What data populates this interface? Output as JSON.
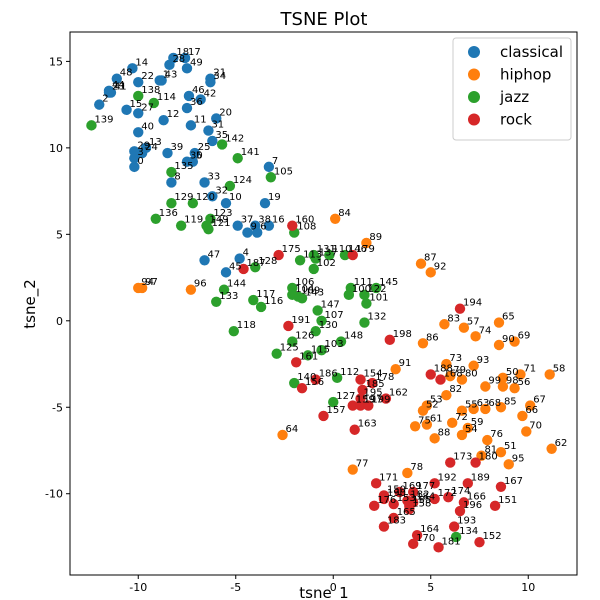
{
  "chart_data": {
    "type": "scatter",
    "title": "TSNE Plot",
    "xlabel": "tsne_1",
    "ylabel": "tsne_2",
    "xlim": [
      -13.5,
      12.5
    ],
    "ylim": [
      -14.7,
      16.7
    ],
    "xticks": [
      -10,
      -5,
      0,
      5,
      10
    ],
    "yticks": [
      -10,
      -5,
      0,
      5,
      10,
      15
    ],
    "legend_position": "top-right",
    "grid": false,
    "series": [
      {
        "name": "classical",
        "color": "#1f77b4",
        "points": [
          {
            "id": "0",
            "x": -10.2,
            "y": 8.9
          },
          {
            "id": "1",
            "x": -8.9,
            "y": 13.9
          },
          {
            "id": "2",
            "x": -12.0,
            "y": 12.5
          },
          {
            "id": "3",
            "x": -10.2,
            "y": 9.4
          },
          {
            "id": "4",
            "x": -4.8,
            "y": 3.6
          },
          {
            "id": "5",
            "x": -7.2,
            "y": 9.2
          },
          {
            "id": "6",
            "x": -3.9,
            "y": 5.1
          },
          {
            "id": "7",
            "x": -3.3,
            "y": 8.9
          },
          {
            "id": "8",
            "x": -8.3,
            "y": 8.0
          },
          {
            "id": "9",
            "x": -4.4,
            "y": 5.1
          },
          {
            "id": "10",
            "x": -5.5,
            "y": 6.8
          },
          {
            "id": "11",
            "x": -7.3,
            "y": 11.3
          },
          {
            "id": "12",
            "x": -8.7,
            "y": 11.6
          },
          {
            "id": "13",
            "x": -9.6,
            "y": 10.0
          },
          {
            "id": "14",
            "x": -10.3,
            "y": 14.6
          },
          {
            "id": "15",
            "x": -10.6,
            "y": 12.2
          },
          {
            "id": "16",
            "x": -3.3,
            "y": 5.5
          },
          {
            "id": "17",
            "x": -7.6,
            "y": 15.2
          },
          {
            "id": "18",
            "x": -8.2,
            "y": 15.2
          },
          {
            "id": "19",
            "x": -3.5,
            "y": 6.8
          },
          {
            "id": "20",
            "x": -6.0,
            "y": 11.7
          },
          {
            "id": "21",
            "x": -6.3,
            "y": 14.0
          },
          {
            "id": "22",
            "x": -10.0,
            "y": 13.8
          },
          {
            "id": "23",
            "x": -11.5,
            "y": 13.2
          },
          {
            "id": "24",
            "x": -9.8,
            "y": 9.7
          },
          {
            "id": "25",
            "x": -7.1,
            "y": 9.7
          },
          {
            "id": "27",
            "x": -10.0,
            "y": 12.0
          },
          {
            "id": "28",
            "x": -8.4,
            "y": 14.8
          },
          {
            "id": "29",
            "x": -10.2,
            "y": 9.8
          },
          {
            "id": "30",
            "x": -7.5,
            "y": 9.2
          },
          {
            "id": "31",
            "x": -6.4,
            "y": 11.0
          },
          {
            "id": "32",
            "x": -6.2,
            "y": 7.2
          },
          {
            "id": "33",
            "x": -6.6,
            "y": 8.0
          },
          {
            "id": "34",
            "x": -6.3,
            "y": 13.8
          },
          {
            "id": "35",
            "x": -6.2,
            "y": 10.4
          },
          {
            "id": "36",
            "x": -7.5,
            "y": 12.3
          },
          {
            "id": "37",
            "x": -4.9,
            "y": 5.5
          },
          {
            "id": "38",
            "x": -4.0,
            "y": 5.5
          },
          {
            "id": "39",
            "x": -8.5,
            "y": 9.7
          },
          {
            "id": "40",
            "x": -10.0,
            "y": 10.9
          },
          {
            "id": "41",
            "x": -11.4,
            "y": 13.2
          },
          {
            "id": "42",
            "x": -6.8,
            "y": 12.8
          },
          {
            "id": "43",
            "x": -8.8,
            "y": 13.9
          },
          {
            "id": "44",
            "x": -11.5,
            "y": 13.3
          },
          {
            "id": "45",
            "x": -5.5,
            "y": 2.8
          },
          {
            "id": "46",
            "x": -7.4,
            "y": 13.0
          },
          {
            "id": "47",
            "x": -6.6,
            "y": 3.5
          },
          {
            "id": "48",
            "x": -11.1,
            "y": 14.0
          },
          {
            "id": "49",
            "x": -7.5,
            "y": 14.6
          }
        ]
      },
      {
        "name": "hiphop",
        "color": "#ff7f0e",
        "points": [
          {
            "id": "50",
            "x": 8.7,
            "y": -3.3
          },
          {
            "id": "51",
            "x": 8.6,
            "y": -7.6
          },
          {
            "id": "52",
            "x": 4.6,
            "y": -5.2
          },
          {
            "id": "53",
            "x": 4.8,
            "y": -4.9
          },
          {
            "id": "54",
            "x": 6.6,
            "y": -6.6
          },
          {
            "id": "55",
            "x": 6.6,
            "y": -5.2
          },
          {
            "id": "56",
            "x": 9.3,
            "y": -3.9
          },
          {
            "id": "57",
            "x": 6.7,
            "y": -0.4
          },
          {
            "id": "58",
            "x": 11.1,
            "y": -3.1
          },
          {
            "id": "59",
            "x": 6.9,
            "y": -6.2
          },
          {
            "id": "61",
            "x": 4.8,
            "y": -6.0
          },
          {
            "id": "62",
            "x": 11.2,
            "y": -7.4
          },
          {
            "id": "63",
            "x": 7.2,
            "y": -5.1
          },
          {
            "id": "64",
            "x": -2.6,
            "y": -6.6
          },
          {
            "id": "65",
            "x": 8.5,
            "y": -0.1
          },
          {
            "id": "66",
            "x": 9.7,
            "y": -5.5
          },
          {
            "id": "67",
            "x": 10.1,
            "y": -4.9
          },
          {
            "id": "68",
            "x": 7.8,
            "y": -5.1
          },
          {
            "id": "69",
            "x": 9.3,
            "y": -1.2
          },
          {
            "id": "70",
            "x": 9.9,
            "y": -6.4
          },
          {
            "id": "71",
            "x": 9.6,
            "y": -3.1
          },
          {
            "id": "72",
            "x": 6.1,
            "y": -5.9
          },
          {
            "id": "73",
            "x": 5.8,
            "y": -2.5
          },
          {
            "id": "74",
            "x": 7.3,
            "y": -0.9
          },
          {
            "id": "75",
            "x": 4.2,
            "y": -6.1
          },
          {
            "id": "76",
            "x": 7.9,
            "y": -6.9
          },
          {
            "id": "77",
            "x": 1.0,
            "y": -8.6
          },
          {
            "id": "78",
            "x": 3.8,
            "y": -8.8
          },
          {
            "id": "79",
            "x": 6.0,
            "y": -3.2
          },
          {
            "id": "80",
            "x": 6.6,
            "y": -3.4
          },
          {
            "id": "81",
            "x": 7.6,
            "y": -7.8
          },
          {
            "id": "82",
            "x": 5.8,
            "y": -4.3
          },
          {
            "id": "83",
            "x": 5.7,
            "y": -0.2
          },
          {
            "id": "84",
            "x": 0.1,
            "y": 5.9
          },
          {
            "id": "85",
            "x": 8.6,
            "y": -5.0
          },
          {
            "id": "86",
            "x": 4.6,
            "y": -1.3
          },
          {
            "id": "87",
            "x": 4.5,
            "y": 3.3
          },
          {
            "id": "88",
            "x": 5.2,
            "y": -6.8
          },
          {
            "id": "89",
            "x": 1.7,
            "y": 4.5
          },
          {
            "id": "90",
            "x": 8.5,
            "y": -1.4
          },
          {
            "id": "91",
            "x": 3.2,
            "y": -2.8
          },
          {
            "id": "92",
            "x": 5.0,
            "y": 2.8
          },
          {
            "id": "93",
            "x": 7.2,
            "y": -2.6
          },
          {
            "id": "94",
            "x": -10.0,
            "y": 1.9
          },
          {
            "id": "95",
            "x": 9.0,
            "y": -8.3
          },
          {
            "id": "96",
            "x": -7.3,
            "y": 1.8
          },
          {
            "id": "97",
            "x": -9.8,
            "y": 1.9
          },
          {
            "id": "98",
            "x": 8.7,
            "y": -3.8
          },
          {
            "id": "99",
            "x": 7.8,
            "y": -3.8
          }
        ]
      },
      {
        "name": "jazz",
        "color": "#2ca02c",
        "points": [
          {
            "id": "100",
            "x": 0.8,
            "y": 1.5
          },
          {
            "id": "101",
            "x": 1.7,
            "y": 1.0
          },
          {
            "id": "102",
            "x": -1.0,
            "y": 3.0
          },
          {
            "id": "103",
            "x": -0.6,
            "y": -1.7
          },
          {
            "id": "104",
            "x": -2.1,
            "y": 1.5
          },
          {
            "id": "105",
            "x": -3.2,
            "y": 8.3
          },
          {
            "id": "106",
            "x": -2.1,
            "y": 1.9
          },
          {
            "id": "107",
            "x": -0.6,
            "y": 0.0
          },
          {
            "id": "108",
            "x": -2.0,
            "y": 5.1
          },
          {
            "id": "109",
            "x": -1.8,
            "y": 1.4
          },
          {
            "id": "110",
            "x": -0.2,
            "y": 3.8
          },
          {
            "id": "111",
            "x": 0.9,
            "y": 1.9
          },
          {
            "id": "112",
            "x": 0.2,
            "y": -3.3
          },
          {
            "id": "113",
            "x": -1.7,
            "y": 3.5
          },
          {
            "id": "114",
            "x": -9.2,
            "y": 12.6
          },
          {
            "id": "115",
            "x": -1.3,
            "y": -2.0
          },
          {
            "id": "116",
            "x": -3.7,
            "y": 0.8
          },
          {
            "id": "117",
            "x": -4.1,
            "y": 1.2
          },
          {
            "id": "118",
            "x": -5.1,
            "y": -0.6
          },
          {
            "id": "119",
            "x": -7.8,
            "y": 5.5
          },
          {
            "id": "120",
            "x": -7.2,
            "y": 6.8
          },
          {
            "id": "121",
            "x": -6.4,
            "y": 5.3
          },
          {
            "id": "122",
            "x": 1.6,
            "y": 1.5
          },
          {
            "id": "123",
            "x": -6.3,
            "y": 5.9
          },
          {
            "id": "124",
            "x": -5.3,
            "y": 7.8
          },
          {
            "id": "125",
            "x": -2.9,
            "y": -1.9
          },
          {
            "id": "126",
            "x": -2.1,
            "y": -1.2
          },
          {
            "id": "127",
            "x": 0.0,
            "y": -4.7
          },
          {
            "id": "128",
            "x": -4.0,
            "y": 3.1
          },
          {
            "id": "129",
            "x": -8.3,
            "y": 6.8
          },
          {
            "id": "130",
            "x": -0.9,
            "y": -0.6
          },
          {
            "id": "131",
            "x": -1.0,
            "y": 3.8
          },
          {
            "id": "132",
            "x": 1.6,
            "y": -0.1
          },
          {
            "id": "133",
            "x": -6.0,
            "y": 1.1
          },
          {
            "id": "134",
            "x": 6.3,
            "y": -12.5
          },
          {
            "id": "135",
            "x": -8.3,
            "y": 8.6
          },
          {
            "id": "136",
            "x": -9.1,
            "y": 5.9
          },
          {
            "id": "137",
            "x": -0.9,
            "y": 3.6
          },
          {
            "id": "138",
            "x": -10.0,
            "y": 13.0
          },
          {
            "id": "139",
            "x": -12.4,
            "y": 11.3
          },
          {
            "id": "140",
            "x": -2.0,
            "y": -3.6
          },
          {
            "id": "141",
            "x": -4.9,
            "y": 9.4
          },
          {
            "id": "142",
            "x": -5.7,
            "y": 10.2
          },
          {
            "id": "143",
            "x": -1.6,
            "y": 1.3
          },
          {
            "id": "144",
            "x": -5.6,
            "y": 1.8
          },
          {
            "id": "145",
            "x": 2.2,
            "y": 1.9
          },
          {
            "id": "146",
            "x": 0.6,
            "y": 3.8
          },
          {
            "id": "147",
            "x": -0.8,
            "y": 0.6
          },
          {
            "id": "148",
            "x": 0.4,
            "y": -1.2
          },
          {
            "id": "149",
            "x": -6.5,
            "y": 5.5
          }
        ]
      },
      {
        "name": "rock",
        "color": "#d62728",
        "points": [
          {
            "id": "150",
            "x": 2.6,
            "y": -10.1
          },
          {
            "id": "151",
            "x": 8.3,
            "y": -10.7
          },
          {
            "id": "152",
            "x": 7.5,
            "y": -12.8
          },
          {
            "id": "153",
            "x": 3.1,
            "y": -10.6
          },
          {
            "id": "154",
            "x": 1.4,
            "y": -3.4
          },
          {
            "id": "155",
            "x": 3.9,
            "y": -10.7
          },
          {
            "id": "156",
            "x": -1.6,
            "y": -3.9
          },
          {
            "id": "157",
            "x": -0.5,
            "y": -5.5
          },
          {
            "id": "158",
            "x": 3.9,
            "y": -10.9
          },
          {
            "id": "159",
            "x": 1.0,
            "y": -4.9
          },
          {
            "id": "160",
            "x": -2.1,
            "y": 5.5
          },
          {
            "id": "161",
            "x": -1.9,
            "y": -2.4
          },
          {
            "id": "162",
            "x": 2.7,
            "y": -4.5
          },
          {
            "id": "163",
            "x": 1.1,
            "y": -6.3
          },
          {
            "id": "164",
            "x": 4.3,
            "y": -12.4
          },
          {
            "id": "165",
            "x": 3.1,
            "y": -11.4
          },
          {
            "id": "166",
            "x": 6.7,
            "y": -10.5
          },
          {
            "id": "167",
            "x": 8.6,
            "y": -9.6
          },
          {
            "id": "168",
            "x": 5.5,
            "y": -3.4
          },
          {
            "id": "169",
            "x": 3.4,
            "y": -9.9
          },
          {
            "id": "170",
            "x": 4.1,
            "y": -12.9
          },
          {
            "id": "171",
            "x": 2.2,
            "y": -9.4
          },
          {
            "id": "172",
            "x": 5.2,
            "y": -10.3
          },
          {
            "id": "173",
            "x": 6.0,
            "y": -8.2
          },
          {
            "id": "174",
            "x": 5.9,
            "y": -10.2
          },
          {
            "id": "175",
            "x": -2.8,
            "y": 3.8
          },
          {
            "id": "176",
            "x": 2.1,
            "y": -10.7
          },
          {
            "id": "177",
            "x": 4.1,
            "y": -9.9
          },
          {
            "id": "178",
            "x": 2.0,
            "y": -3.6
          },
          {
            "id": "179",
            "x": 1.0,
            "y": 3.8
          },
          {
            "id": "180",
            "x": 7.3,
            "y": -8.2
          },
          {
            "id": "181",
            "x": 5.4,
            "y": -13.1
          },
          {
            "id": "182",
            "x": 3.8,
            "y": -10.4
          },
          {
            "id": "183",
            "x": 2.6,
            "y": -11.9
          },
          {
            "id": "184",
            "x": 4.1,
            "y": -10.5
          },
          {
            "id": "185",
            "x": 1.5,
            "y": -4.0
          },
          {
            "id": "186",
            "x": -0.9,
            "y": -3.4
          },
          {
            "id": "187",
            "x": -4.6,
            "y": 3.0
          },
          {
            "id": "188",
            "x": 5.0,
            "y": -3.1
          },
          {
            "id": "189",
            "x": 6.9,
            "y": -9.4
          },
          {
            "id": "190",
            "x": 2.6,
            "y": -10.3
          },
          {
            "id": "191",
            "x": -2.3,
            "y": -0.3
          },
          {
            "id": "192",
            "x": 5.2,
            "y": -9.4
          },
          {
            "id": "193",
            "x": 6.2,
            "y": -11.9
          },
          {
            "id": "194",
            "x": 6.5,
            "y": 0.7
          },
          {
            "id": "195",
            "x": 1.4,
            "y": -4.5
          },
          {
            "id": "196",
            "x": 6.5,
            "y": -11.0
          },
          {
            "id": "197",
            "x": 1.4,
            "y": -4.9
          },
          {
            "id": "198",
            "x": 2.9,
            "y": -1.1
          },
          {
            "id": "199",
            "x": 1.8,
            "y": -4.9
          }
        ]
      }
    ]
  }
}
